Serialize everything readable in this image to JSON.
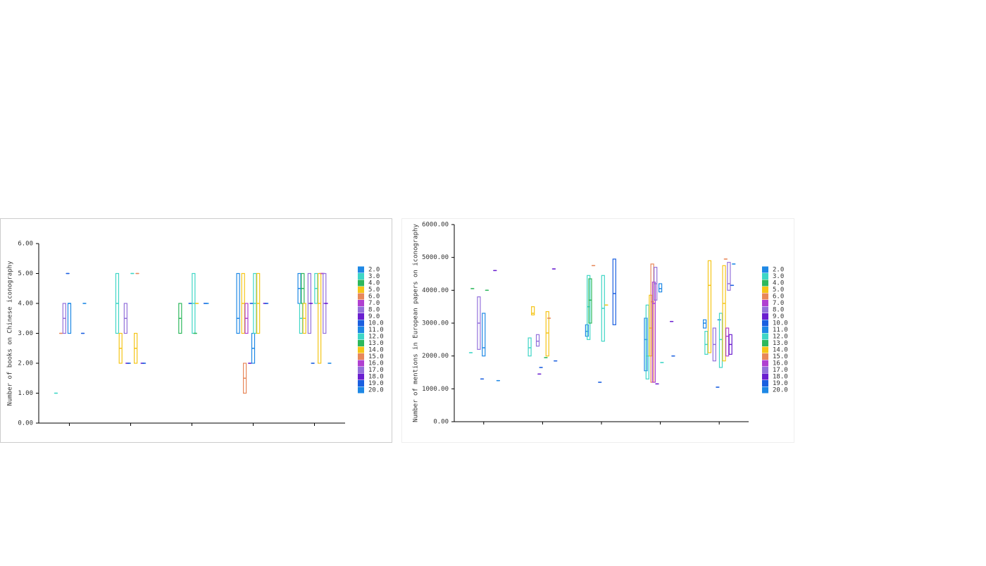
{
  "chart_data": [
    {
      "type": "box",
      "y_label": "Number of books on Chinese iconography",
      "categories": [
        null,
        null,
        null,
        null,
        null
      ],
      "ylim": [
        0,
        6
      ],
      "yticks": [
        {
          "value": 0,
          "label": "0.00"
        },
        {
          "value": 1,
          "label": "1.00"
        },
        {
          "value": 2,
          "label": "2.00"
        },
        {
          "value": 3,
          "label": "3.00"
        },
        {
          "value": 4,
          "label": "4.00"
        },
        {
          "value": 5,
          "label": "5.00"
        },
        {
          "value": 6,
          "label": "6.00"
        }
      ],
      "series": [
        {
          "name": "2.0",
          "color": "#1e88e5",
          "values": [
            null,
            null,
            null,
            [
              3,
              3.5,
              5
            ],
            [
              4,
              4.5,
              5
            ]
          ]
        },
        {
          "name": "3.0",
          "color": "#3fd6c6",
          "values": [
            [
              1,
              1,
              1
            ],
            [
              3,
              4,
              5
            ],
            null,
            null,
            [
              3,
              3.5,
              4
            ]
          ]
        },
        {
          "name": "4.0",
          "color": "#2eb85c",
          "values": [
            null,
            null,
            [
              3,
              3.5,
              4
            ],
            null,
            [
              4,
              4.5,
              5
            ]
          ]
        },
        {
          "name": "5.0",
          "color": "#f5c518",
          "values": [
            null,
            [
              2,
              2.5,
              3
            ],
            null,
            [
              3,
              4,
              5
            ],
            [
              3,
              3.5,
              4
            ]
          ]
        },
        {
          "name": "6.0",
          "color": "#e8885a",
          "values": [
            [
              3,
              3,
              3
            ],
            null,
            null,
            [
              1,
              1.5,
              2
            ],
            null
          ]
        },
        {
          "name": "7.0",
          "color": "#b040d0",
          "values": [
            null,
            null,
            null,
            [
              3,
              3.5,
              4
            ],
            null
          ]
        },
        {
          "name": "8.0",
          "color": "#9370db",
          "values": [
            [
              3,
              3.5,
              4
            ],
            [
              3,
              3.5,
              4
            ],
            null,
            null,
            [
              3,
              4,
              5
            ]
          ]
        },
        {
          "name": "9.0",
          "color": "#6a1fd0",
          "values": [
            null,
            [
              2,
              2,
              2
            ],
            null,
            [
              2,
              2,
              2
            ],
            [
              4,
              4,
              4
            ]
          ]
        },
        {
          "name": "10.0",
          "color": "#1a5fe0",
          "values": [
            [
              5,
              5,
              5
            ],
            [
              2,
              2,
              2
            ],
            [
              4,
              4,
              4
            ],
            [
              4,
              4,
              4
            ],
            [
              2,
              2,
              2
            ]
          ]
        },
        {
          "name": "11.0",
          "color": "#1e88e5",
          "values": [
            [
              3,
              4,
              4
            ],
            null,
            null,
            [
              2,
              2.5,
              3
            ],
            null
          ]
        },
        {
          "name": "12.0",
          "color": "#3fd6c6",
          "values": [
            null,
            [
              5,
              5,
              5
            ],
            [
              3,
              4,
              5
            ],
            [
              3,
              4,
              5
            ],
            [
              4,
              4.5,
              5
            ]
          ]
        },
        {
          "name": "13.0",
          "color": "#2eb85c",
          "values": [
            null,
            null,
            [
              3,
              3,
              3
            ],
            null,
            null
          ]
        },
        {
          "name": "14.0",
          "color": "#f5c518",
          "values": [
            null,
            [
              2,
              2.5,
              3
            ],
            [
              4,
              4,
              4
            ],
            [
              3,
              4,
              5
            ],
            [
              2,
              4,
              5
            ]
          ]
        },
        {
          "name": "15.0",
          "color": "#e8885a",
          "values": [
            null,
            [
              5,
              5,
              5
            ],
            null,
            null,
            [
              5,
              5,
              5
            ]
          ]
        },
        {
          "name": "16.0",
          "color": "#b040d0",
          "values": [
            null,
            null,
            null,
            null,
            [
              5,
              5,
              5
            ]
          ]
        },
        {
          "name": "17.0",
          "color": "#9370db",
          "values": [
            null,
            null,
            null,
            null,
            [
              3,
              4,
              5
            ]
          ]
        },
        {
          "name": "18.0",
          "color": "#6a1fd0",
          "values": [
            null,
            [
              2,
              2,
              2
            ],
            null,
            [
              4,
              4,
              4
            ],
            [
              4,
              4,
              4
            ]
          ]
        },
        {
          "name": "19.0",
          "color": "#1a5fe0",
          "values": [
            [
              3,
              3,
              3
            ],
            [
              2,
              2,
              2
            ],
            [
              4,
              4,
              4
            ],
            [
              4,
              4,
              4
            ],
            null
          ]
        },
        {
          "name": "20.0",
          "color": "#1e88e5",
          "values": [
            [
              4,
              4,
              4
            ],
            null,
            [
              4,
              4,
              4
            ],
            null,
            [
              2,
              2,
              2
            ]
          ]
        }
      ]
    },
    {
      "type": "box",
      "y_label": "Number of mentions in European papers on iconography",
      "categories": [
        null,
        null,
        null,
        null,
        null
      ],
      "ylim": [
        0,
        6000
      ],
      "yticks": [
        {
          "value": 0,
          "label": "0.00"
        },
        {
          "value": 1000,
          "label": "1000.00"
        },
        {
          "value": 2000,
          "label": "2000.00"
        },
        {
          "value": 3000,
          "label": "3000.00"
        },
        {
          "value": 4000,
          "label": "4000.00"
        },
        {
          "value": 5000,
          "label": "5000.00"
        },
        {
          "value": 6000,
          "label": "6000.00"
        }
      ],
      "series": [
        {
          "name": "2.0",
          "color": "#1e88e5",
          "values": [
            null,
            null,
            [
              2600,
              2750,
              2950
            ],
            [
              1550,
              2500,
              3150
            ],
            [
              2850,
              3000,
              3100
            ]
          ]
        },
        {
          "name": "3.0",
          "color": "#3fd6c6",
          "values": [
            [
              2100,
              2100,
              2100
            ],
            [
              2000,
              2250,
              2550
            ],
            [
              2500,
              3500,
              4450
            ],
            [
              1300,
              2000,
              3550
            ],
            [
              2050,
              2350,
              2750
            ]
          ]
        },
        {
          "name": "4.0",
          "color": "#2eb85c",
          "values": [
            [
              4050,
              4050,
              4050
            ],
            null,
            [
              3000,
              3700,
              4350
            ],
            null,
            null
          ]
        },
        {
          "name": "5.0",
          "color": "#f5c518",
          "values": [
            null,
            [
              3250,
              3300,
              3500
            ],
            null,
            [
              2000,
              2850,
              3850
            ],
            [
              2100,
              4150,
              4900
            ]
          ]
        },
        {
          "name": "6.0",
          "color": "#e8885a",
          "values": [
            null,
            null,
            [
              4750,
              4750,
              4750
            ],
            [
              1200,
              3650,
              4800
            ],
            null
          ]
        },
        {
          "name": "7.0",
          "color": "#b040d0",
          "values": [
            null,
            null,
            null,
            [
              1200,
              3600,
              4250
            ],
            null
          ]
        },
        {
          "name": "8.0",
          "color": "#9370db",
          "values": [
            [
              2200,
              3000,
              3800
            ],
            [
              2300,
              2450,
              2650
            ],
            null,
            [
              3700,
              4200,
              4700
            ],
            [
              1850,
              2350,
              2850
            ]
          ]
        },
        {
          "name": "9.0",
          "color": "#6a1fd0",
          "values": [
            null,
            [
              1450,
              1450,
              1450
            ],
            null,
            [
              1150,
              1150,
              1150
            ],
            null
          ]
        },
        {
          "name": "10.0",
          "color": "#1a5fe0",
          "values": [
            [
              1300,
              1300,
              1300
            ],
            [
              1650,
              1650,
              1650
            ],
            [
              1200,
              1200,
              1200
            ],
            null,
            [
              1050,
              1050,
              1050
            ]
          ]
        },
        {
          "name": "11.0",
          "color": "#1e88e5",
          "values": [
            [
              2000,
              2250,
              3300
            ],
            null,
            null,
            [
              3950,
              4050,
              4200
            ],
            [
              3100,
              3100,
              3100
            ]
          ]
        },
        {
          "name": "12.0",
          "color": "#3fd6c6",
          "values": [
            null,
            null,
            [
              2450,
              3450,
              4450
            ],
            [
              1800,
              1800,
              1800
            ],
            [
              1650,
              2500,
              3300
            ]
          ]
        },
        {
          "name": "13.0",
          "color": "#2eb85c",
          "values": [
            [
              4000,
              4000,
              4000
            ],
            [
              1950,
              1950,
              1950
            ],
            null,
            null,
            null
          ]
        },
        {
          "name": "14.0",
          "color": "#f5c518",
          "values": [
            null,
            [
              2000,
              2700,
              3350
            ],
            [
              3550,
              3550,
              3550
            ],
            null,
            [
              1850,
              3600,
              4750
            ]
          ]
        },
        {
          "name": "15.0",
          "color": "#e8885a",
          "values": [
            null,
            [
              3150,
              3150,
              3150
            ],
            null,
            null,
            [
              4950,
              4950,
              4950
            ]
          ]
        },
        {
          "name": "16.0",
          "color": "#b040d0",
          "values": [
            null,
            null,
            null,
            null,
            [
              2000,
              2600,
              2850
            ]
          ]
        },
        {
          "name": "17.0",
          "color": "#9370db",
          "values": [
            null,
            null,
            null,
            null,
            [
              4000,
              4200,
              4850
            ]
          ]
        },
        {
          "name": "18.0",
          "color": "#6a1fd0",
          "values": [
            [
              4600,
              4600,
              4600
            ],
            [
              4650,
              4650,
              4650
            ],
            null,
            [
              3050,
              3050,
              3050
            ],
            [
              2050,
              2350,
              2650
            ]
          ]
        },
        {
          "name": "19.0",
          "color": "#1a5fe0",
          "values": [
            null,
            [
              1850,
              1850,
              1850
            ],
            [
              2950,
              3900,
              4950
            ],
            [
              2000,
              2000,
              2000
            ],
            [
              4150,
              4150,
              4150
            ]
          ]
        },
        {
          "name": "20.0",
          "color": "#1e88e5",
          "values": [
            [
              1250,
              1250,
              1250
            ],
            null,
            null,
            null,
            [
              4800,
              4800,
              4800
            ]
          ]
        }
      ]
    }
  ]
}
